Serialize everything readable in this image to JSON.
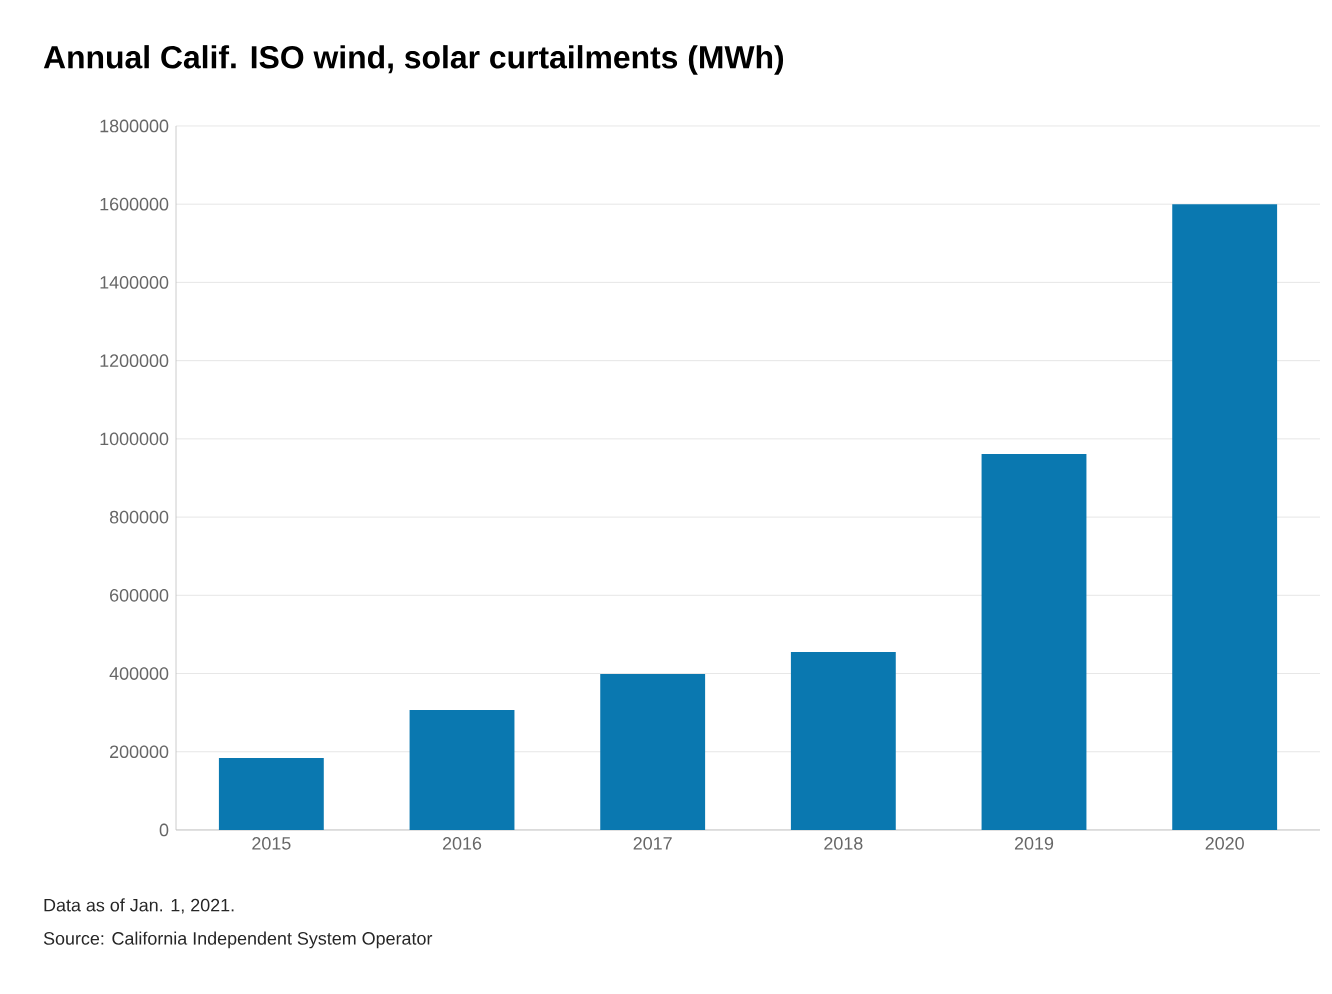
{
  "chart_data": {
    "type": "bar",
    "title": "Annual Calif. ISO wind, solar curtailments (MWh)",
    "categories": [
      "2015",
      "2016",
      "2017",
      "2018",
      "2019",
      "2020"
    ],
    "values": [
      184000,
      307000,
      399000,
      455000,
      961000,
      1600000
    ],
    "color": "#0a78b0",
    "ylim": [
      0,
      1800000
    ],
    "yticks": [
      0,
      200000,
      400000,
      600000,
      800000,
      1000000,
      1200000,
      1400000,
      1600000,
      1800000
    ],
    "grid": "y",
    "annotations": [
      "Data as of Jan. 1, 2021.",
      "Source: California Independent System Operator"
    ]
  }
}
